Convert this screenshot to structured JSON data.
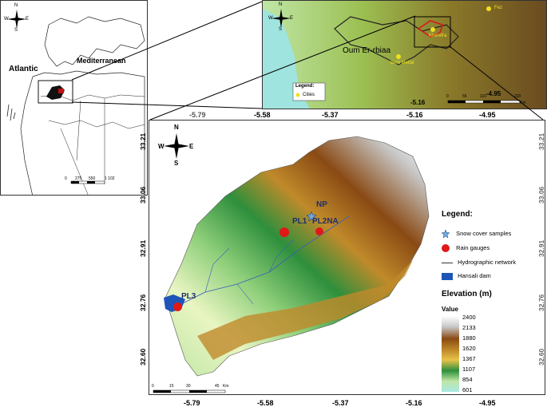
{
  "world_inset": {
    "atlantic_label": "Atlantic",
    "mediterranean_label": "Mediterranean",
    "scale_labels": [
      "0",
      "275",
      "550",
      "1 102"
    ],
    "compass": {
      "n": "N",
      "s": "S",
      "e": "E",
      "w": "W"
    }
  },
  "regional_inset": {
    "places": [
      "Fez",
      "Khenifra",
      "Beni Mellal"
    ],
    "basin_label": "Oum Er-rbiaa",
    "legend_title": "Legend:",
    "legend_cities": "Cities",
    "lon_ticks": [
      "-5.16",
      "-4.95"
    ],
    "scale_labels": [
      "0",
      "55",
      "110",
      "220"
    ],
    "scale_unit": "Km",
    "compass": {
      "n": "N",
      "s": "S",
      "e": "E",
      "w": "W"
    }
  },
  "main_map": {
    "lon_ticks_top": [
      "-5.79",
      "-5.58",
      "-5.37",
      "-5.16",
      "-4.95"
    ],
    "lon_ticks_bottom": [
      "-5.79",
      "-5.58",
      "-5.37",
      "-5.16",
      "-4.95"
    ],
    "lat_ticks": [
      "33.21",
      "33.06",
      "32.91",
      "32.76",
      "32.60"
    ],
    "stations": [
      {
        "label": "NP",
        "kind": "snow"
      },
      {
        "label": "PL1",
        "kind": "rain"
      },
      {
        "label": "PL2NA",
        "kind": "rain"
      },
      {
        "label": "PL3",
        "kind": "rain"
      }
    ],
    "scale_labels": [
      "0",
      "15",
      "30",
      "45"
    ],
    "scale_unit": "Km",
    "compass": {
      "n": "N",
      "s": "S",
      "e": "E",
      "w": "W"
    }
  },
  "legend": {
    "title": "Legend:",
    "items": [
      {
        "label": "Snow cover samples",
        "symbol": "star-icon"
      },
      {
        "label": "Rain gauges",
        "symbol": "red-circle-icon"
      },
      {
        "label": "Hydrographic network",
        "symbol": "line-icon"
      },
      {
        "label": "Hansali dam",
        "symbol": "blue-rect-icon"
      }
    ],
    "elevation_title": "Elevation (m)",
    "value_label": "Value",
    "elevation_values": [
      "2400",
      "2133",
      "1880",
      "1620",
      "1367",
      "1107",
      "854",
      "601"
    ],
    "colors": [
      "#ffffff",
      "#c8c8c8",
      "#8a4a14",
      "#c08a2a",
      "#e8c24a",
      "#2e8f3c",
      "#bfe6a6",
      "#a9e8e4"
    ]
  }
}
